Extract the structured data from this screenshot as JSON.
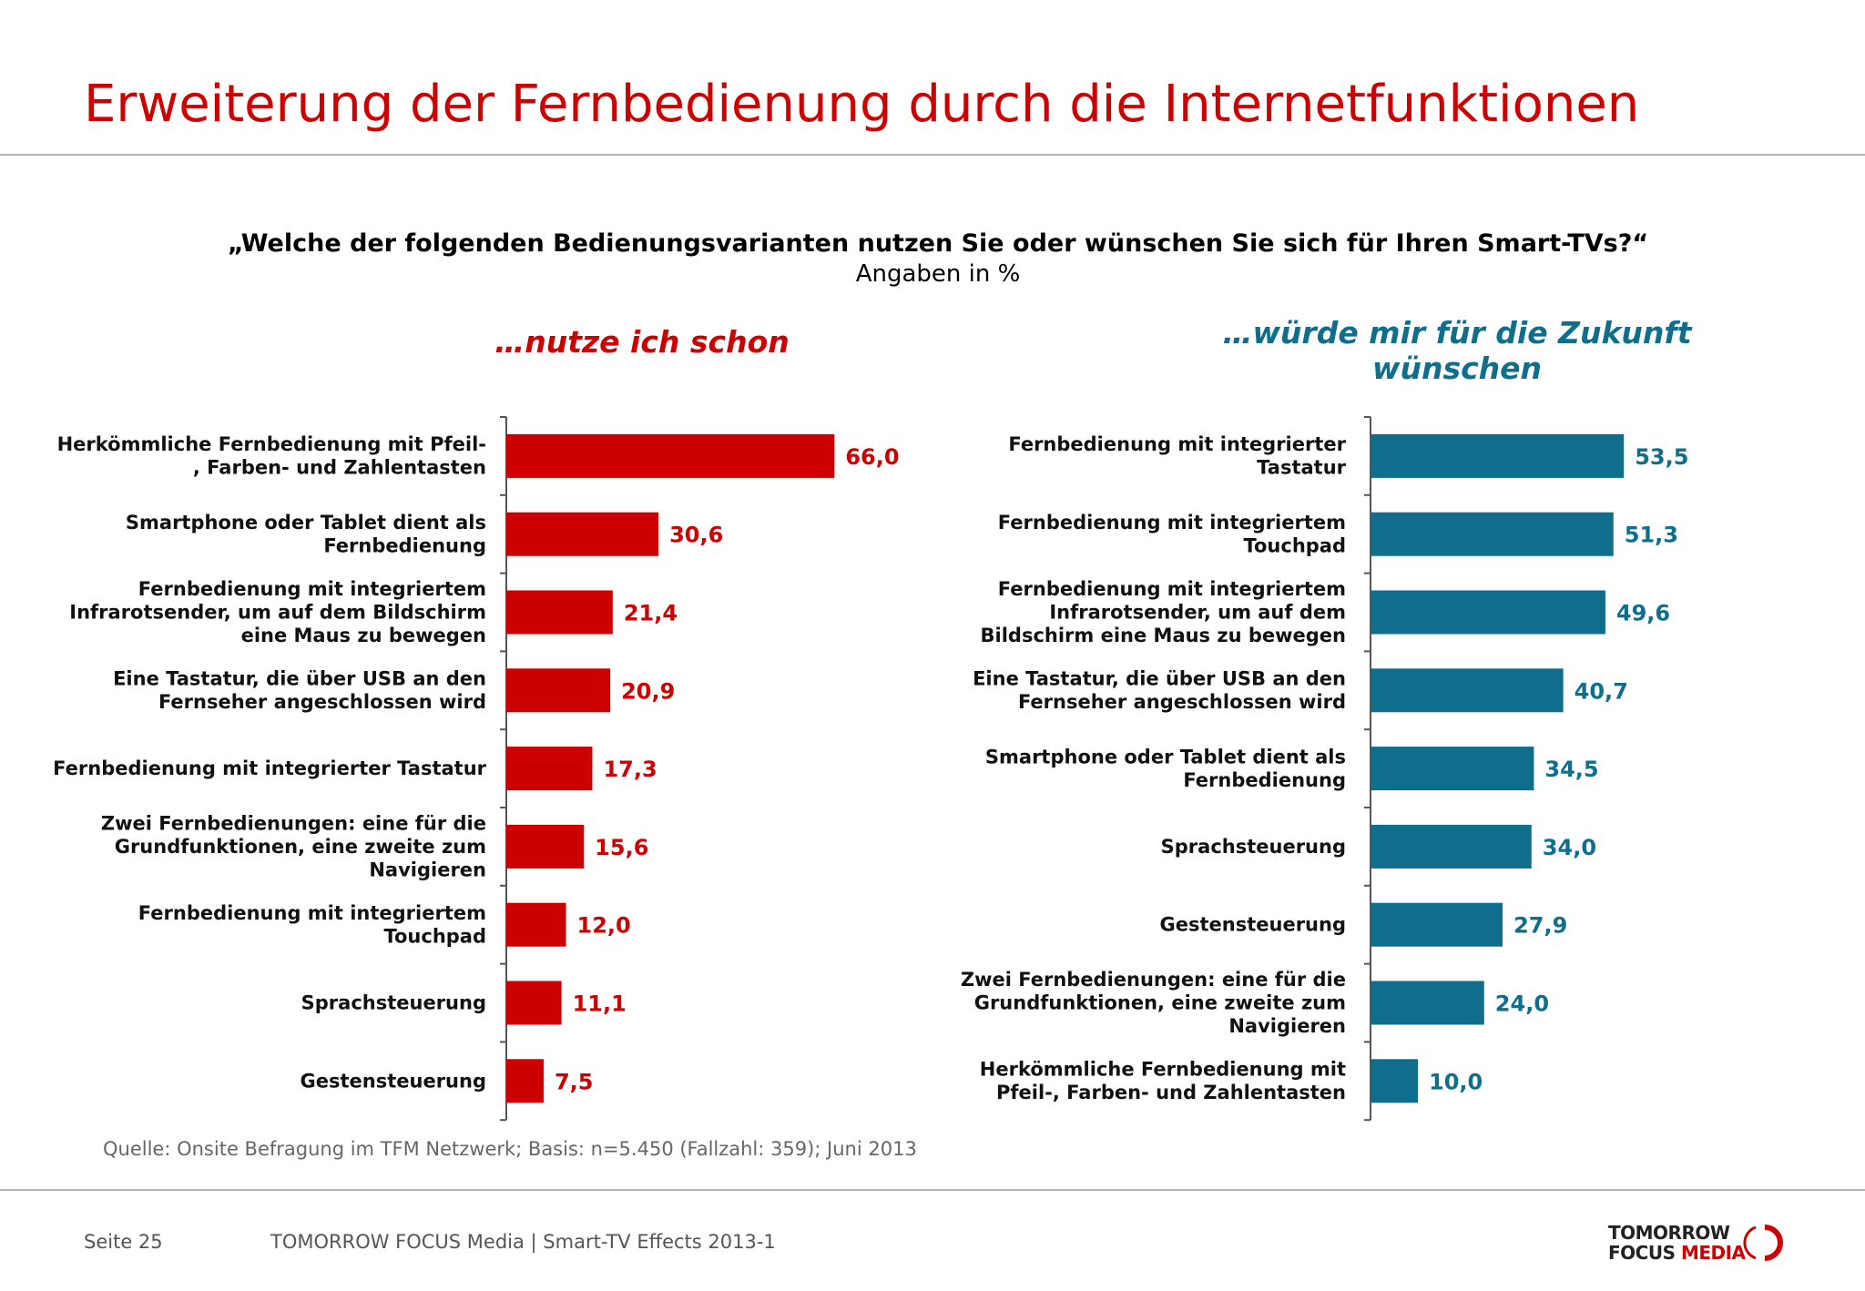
{
  "slide": {
    "title": "Erweiterung der Fernbedienung durch die Internetfunktionen"
  },
  "chart": {
    "question": "„Welche der folgenden Bedienungsvarianten nutzen Sie oder wünschen Sie sich für Ihren Smart-TVs?“",
    "unit": "Angaben in %"
  },
  "source": "Quelle: Onsite Befragung im TFM Netzwerk; Basis: n=5.450 (Fallzahl: 359); Juni 2013",
  "footer": {
    "page": "Seite 25",
    "company": "TOMORROW FOCUS Media  |  Smart-TV Effects 2013-1",
    "logo_line1": "TOMORROW",
    "logo_line2a": "FOCUS ",
    "logo_line2b": "MEDIA"
  },
  "colors": {
    "title": "#cc0000",
    "left_series": "#cc0000",
    "right_series": "#0e6e8c",
    "axis": "#555555"
  },
  "chart_data": [
    {
      "type": "bar",
      "orientation": "horizontal",
      "title": "…nutze ich schon",
      "color": "#cc0000",
      "xlim": [
        0,
        100
      ],
      "categories": [
        [
          "Herkömmliche Fernbedienung mit Pfeil-",
          ", Farben- und Zahlentasten"
        ],
        [
          "Smartphone oder Tablet dient als",
          "Fernbedienung"
        ],
        [
          "Fernbedienung mit integriertem",
          "Infrarotsender, um auf dem Bildschirm",
          "eine Maus zu bewegen"
        ],
        [
          "Eine Tastatur, die über USB an den",
          "Fernseher angeschlossen wird"
        ],
        [
          "Fernbedienung mit integrierter Tastatur"
        ],
        [
          "Zwei Fernbedienungen: eine für die",
          "Grundfunktionen, eine zweite zum",
          "Navigieren"
        ],
        [
          "Fernbedienung mit integriertem",
          "Touchpad"
        ],
        [
          "Sprachsteuerung"
        ],
        [
          "Gestensteuerung"
        ]
      ],
      "values": [
        66.0,
        30.6,
        21.4,
        20.9,
        17.3,
        15.6,
        12.0,
        11.1,
        7.5
      ],
      "value_labels": [
        "66,0",
        "30,6",
        "21,4",
        "20,9",
        "17,3",
        "15,6",
        "12,0",
        "11,1",
        "7,5"
      ]
    },
    {
      "type": "bar",
      "orientation": "horizontal",
      "title": "…würde mir für die Zukunft wünschen",
      "color": "#0e6e8c",
      "xlim": [
        0,
        100
      ],
      "categories": [
        [
          "Fernbedienung mit integrierter",
          "Tastatur"
        ],
        [
          "Fernbedienung mit integriertem",
          "Touchpad"
        ],
        [
          "Fernbedienung mit integriertem",
          "Infrarotsender, um auf dem",
          "Bildschirm eine Maus zu bewegen"
        ],
        [
          "Eine Tastatur, die über USB an den",
          "Fernseher angeschlossen wird"
        ],
        [
          "Smartphone oder Tablet dient als",
          "Fernbedienung"
        ],
        [
          "Sprachsteuerung"
        ],
        [
          "Gestensteuerung"
        ],
        [
          "Zwei Fernbedienungen: eine für die",
          "Grundfunktionen, eine zweite zum",
          "Navigieren"
        ],
        [
          "Herkömmliche Fernbedienung mit",
          "Pfeil-, Farben- und Zahlentasten"
        ]
      ],
      "values": [
        53.5,
        51.3,
        49.6,
        40.7,
        34.5,
        34.0,
        27.9,
        24.0,
        10.0
      ],
      "value_labels": [
        "53,5",
        "51,3",
        "49,6",
        "40,7",
        "34,5",
        "34,0",
        "27,9",
        "24,0",
        "10,0"
      ]
    }
  ]
}
